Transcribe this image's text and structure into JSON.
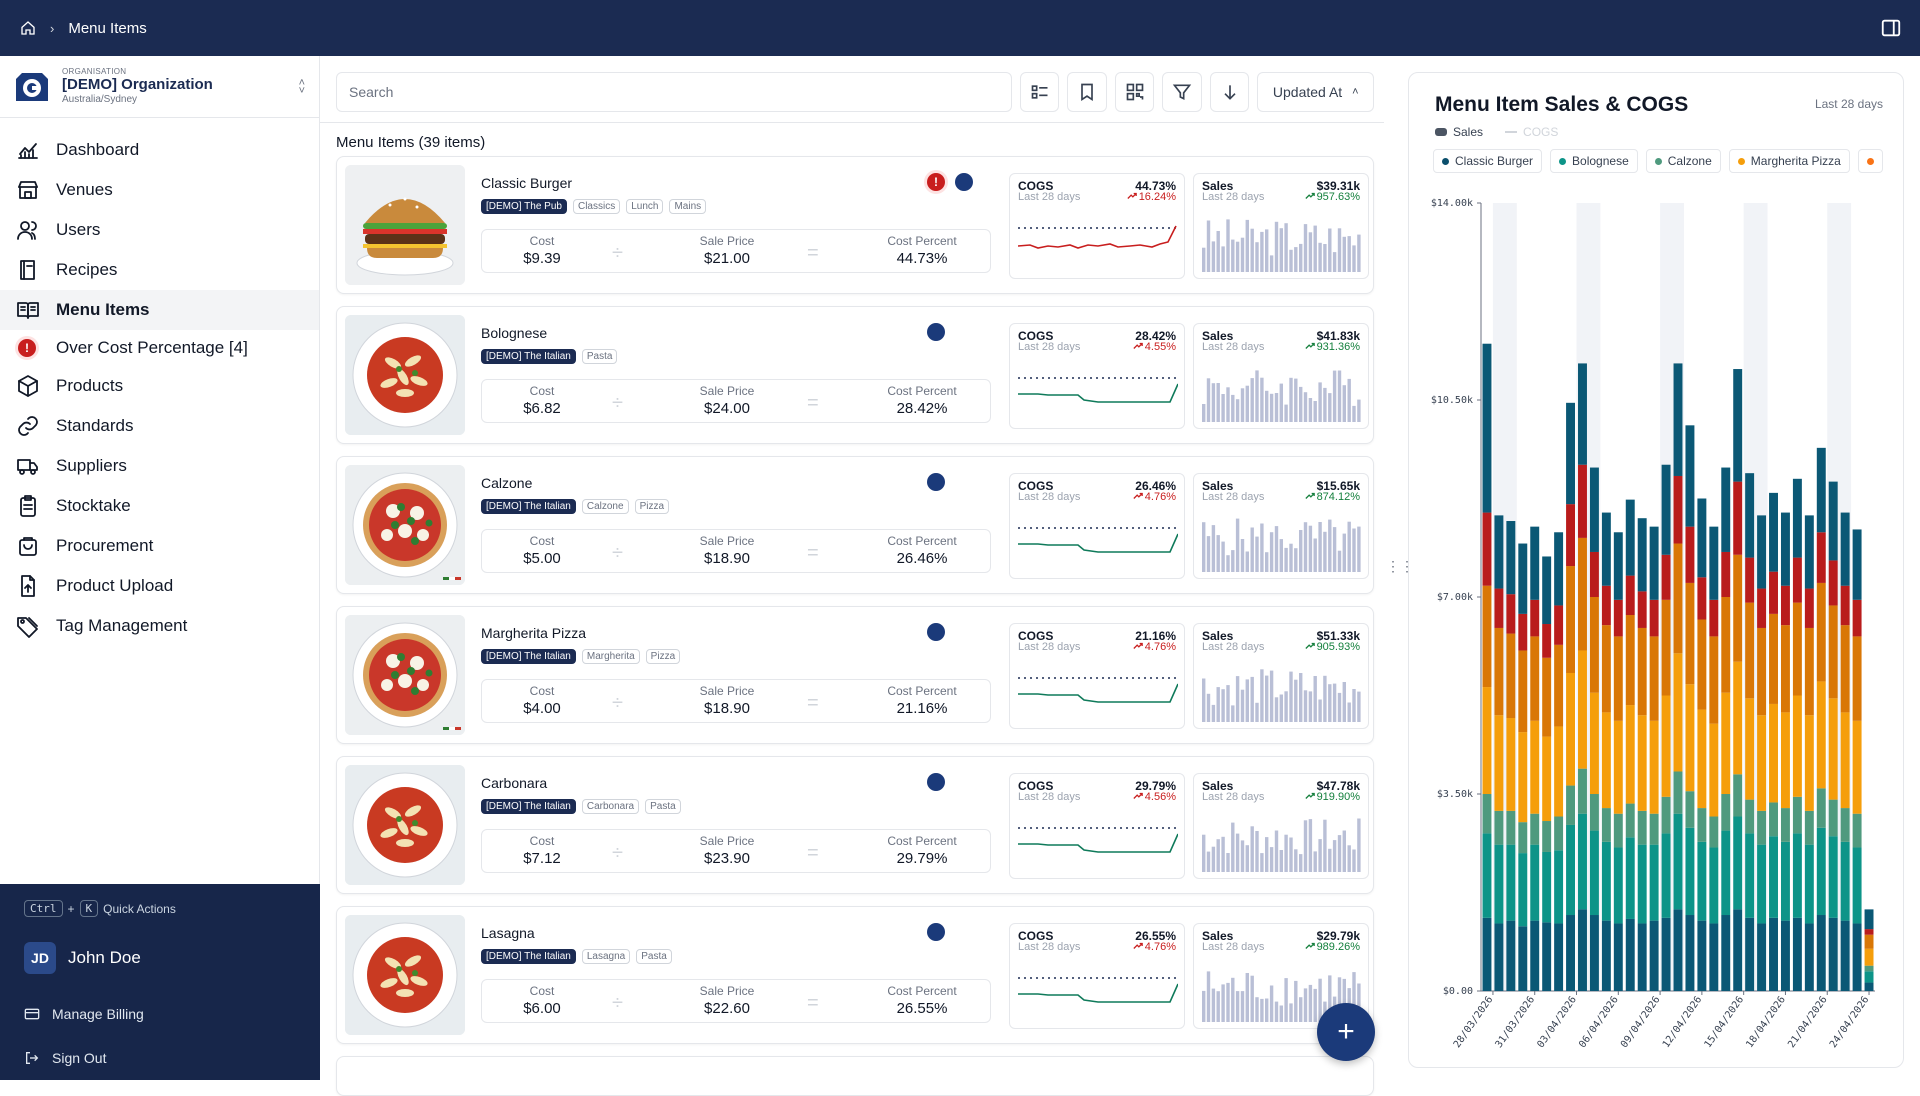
{
  "topbar": {
    "breadcrumb": "Menu Items"
  },
  "org": {
    "label": "ORGANISATION",
    "name": "[DEMO] Organization",
    "timezone": "Australia/Sydney"
  },
  "nav": [
    {
      "label": "Dashboard",
      "icon": "chart-icon"
    },
    {
      "label": "Venues",
      "icon": "store-icon"
    },
    {
      "label": "Users",
      "icon": "users-icon"
    },
    {
      "label": "Recipes",
      "icon": "book-icon"
    },
    {
      "label": "Menu Items",
      "icon": "menu-book-icon",
      "active": true
    },
    {
      "label": "Over Cost Percentage [4]",
      "icon": "alert-icon",
      "sub": true
    },
    {
      "label": "Products",
      "icon": "box-icon"
    },
    {
      "label": "Standards",
      "icon": "link-icon"
    },
    {
      "label": "Suppliers",
      "icon": "truck-icon"
    },
    {
      "label": "Stocktake",
      "icon": "clipboard-icon"
    },
    {
      "label": "Procurement",
      "icon": "cart-icon"
    },
    {
      "label": "Product Upload",
      "icon": "upload-icon"
    },
    {
      "label": "Tag Management",
      "icon": "tag-icon"
    }
  ],
  "userpanel": {
    "kbd1": "Ctrl",
    "plus": "+",
    "kbd2": "K",
    "quick_actions": "Quick Actions",
    "initials": "JD",
    "user_name": "John Doe",
    "billing": "Manage Billing",
    "signout": "Sign Out"
  },
  "toolbar": {
    "search_placeholder": "Search",
    "sort_label": "Updated At"
  },
  "list": {
    "count_label": "Menu Items (39 items)"
  },
  "labels": {
    "cost": "Cost",
    "sale_price": "Sale Price",
    "cost_percent": "Cost Percent",
    "cogs": "COGS",
    "sales": "Sales",
    "period": "Last 28 days"
  },
  "items": [
    {
      "name": "Classic Burger",
      "tags": [
        "[DEMO] The Pub",
        "Classics",
        "Lunch",
        "Mains"
      ],
      "cost": "$9.39",
      "sale_price": "$21.00",
      "cost_percent": "44.73%",
      "cogs_value": "44.73%",
      "cogs_change": "16.24%",
      "sales_value": "$39.31k",
      "sales_change": "957.63%",
      "over_cost": true,
      "image": "burger"
    },
    {
      "name": "Bolognese",
      "tags": [
        "[DEMO] The Italian",
        "Pasta"
      ],
      "cost": "$6.82",
      "sale_price": "$24.00",
      "cost_percent": "28.42%",
      "cogs_value": "28.42%",
      "cogs_change": "4.55%",
      "sales_value": "$41.83k",
      "sales_change": "931.36%",
      "over_cost": false,
      "image": "pasta"
    },
    {
      "name": "Calzone",
      "tags": [
        "[DEMO] The Italian",
        "Calzone",
        "Pizza"
      ],
      "cost": "$5.00",
      "sale_price": "$18.90",
      "cost_percent": "26.46%",
      "cogs_value": "26.46%",
      "cogs_change": "4.76%",
      "sales_value": "$15.65k",
      "sales_change": "874.12%",
      "over_cost": false,
      "image": "pizza"
    },
    {
      "name": "Margherita Pizza",
      "tags": [
        "[DEMO] The Italian",
        "Margherita",
        "Pizza"
      ],
      "cost": "$4.00",
      "sale_price": "$18.90",
      "cost_percent": "21.16%",
      "cogs_value": "21.16%",
      "cogs_change": "4.76%",
      "sales_value": "$51.33k",
      "sales_change": "905.93%",
      "over_cost": false,
      "image": "pizza"
    },
    {
      "name": "Carbonara",
      "tags": [
        "[DEMO] The Italian",
        "Carbonara",
        "Pasta"
      ],
      "cost": "$7.12",
      "sale_price": "$23.90",
      "cost_percent": "29.79%",
      "cogs_value": "29.79%",
      "cogs_change": "4.56%",
      "sales_value": "$47.78k",
      "sales_change": "919.90%",
      "over_cost": false,
      "image": "pasta"
    },
    {
      "name": "Lasagna",
      "tags": [
        "[DEMO] The Italian",
        "Lasagna",
        "Pasta"
      ],
      "cost": "$6.00",
      "sale_price": "$22.60",
      "cost_percent": "26.55%",
      "cogs_value": "26.55%",
      "cogs_change": "4.76%",
      "sales_value": "$29.79k",
      "sales_change": "989.26%",
      "over_cost": false,
      "image": "pasta"
    }
  ],
  "colors": {
    "navy": "#1b2b52",
    "accent": "#1b3a7a",
    "red": "#c81e1e",
    "green": "#15803d",
    "sales_bar": "#b9bfd6",
    "cogs_line_green": "#0f7a5a"
  },
  "chart": {
    "title": "Menu Item Sales & COGS",
    "period": "Last 28 days",
    "toggle_sales": "Sales",
    "toggle_cogs": "COGS"
  },
  "chart_data": {
    "type": "bar",
    "stacked": true,
    "title": "Menu Item Sales & COGS",
    "ylim": [
      0,
      14000
    ],
    "y_ticks": [
      "$0.00",
      "$3.50k",
      "$7.00k",
      "$10.50k",
      "$14.00k"
    ],
    "x_tick_labels": [
      "28/03/2026",
      "31/03/2026",
      "03/04/2026",
      "06/04/2026",
      "09/04/2026",
      "12/04/2026",
      "15/04/2026",
      "18/04/2026",
      "21/04/2026",
      "24/04/2026"
    ],
    "legend": [
      {
        "name": "Classic Burger",
        "color": "#0b4f6c"
      },
      {
        "name": "Bolognese",
        "color": "#0d9488"
      },
      {
        "name": "Calzone",
        "color": "#4f9a7e"
      },
      {
        "name": "Margherita Pizza",
        "color": "#f59e0b"
      }
    ],
    "series": [
      {
        "color": "#0b5875",
        "values": [
          1300,
          1200,
          1250,
          1150,
          1250,
          1220,
          1200,
          1350,
          1450,
          1350,
          1250,
          1200,
          1280,
          1200,
          1250,
          1300,
          1450,
          1350,
          1250,
          1200,
          1350,
          1450,
          1300,
          1200,
          1300,
          1250,
          1300,
          1200,
          1350,
          1300,
          1250,
          1200,
          150
        ]
      },
      {
        "color": "#0d9488",
        "values": [
          1500,
          1400,
          1350,
          1300,
          1350,
          1250,
          1300,
          1600,
          1700,
          1500,
          1400,
          1350,
          1450,
          1400,
          1350,
          1500,
          1700,
          1550,
          1400,
          1350,
          1500,
          1650,
          1500,
          1400,
          1450,
          1400,
          1500,
          1400,
          1550,
          1450,
          1400,
          1350,
          200
        ]
      },
      {
        "color": "#4f9a7e",
        "values": [
          700,
          600,
          600,
          550,
          550,
          550,
          600,
          700,
          800,
          650,
          600,
          600,
          600,
          600,
          550,
          650,
          750,
          650,
          600,
          550,
          650,
          750,
          600,
          600,
          600,
          600,
          650,
          600,
          700,
          650,
          600,
          600,
          100
        ]
      },
      {
        "color": "#f59e0b",
        "values": [
          1900,
          1700,
          1650,
          1600,
          1650,
          1500,
          1600,
          2000,
          2100,
          1800,
          1700,
          1650,
          1750,
          1700,
          1650,
          1800,
          2100,
          1900,
          1750,
          1650,
          1800,
          2000,
          1800,
          1700,
          1750,
          1700,
          1800,
          1700,
          1900,
          1800,
          1700,
          1650,
          300
        ]
      },
      {
        "color": "#d97706",
        "values": [
          1800,
          1550,
          1500,
          1450,
          1500,
          1400,
          1450,
          1900,
          2000,
          1700,
          1550,
          1500,
          1600,
          1550,
          1500,
          1700,
          1950,
          1800,
          1600,
          1550,
          1700,
          1900,
          1700,
          1550,
          1600,
          1550,
          1650,
          1550,
          1750,
          1650,
          1550,
          1500,
          250
        ]
      },
      {
        "color": "#b91c1c",
        "values": [
          1300,
          700,
          700,
          650,
          650,
          600,
          700,
          1100,
          1300,
          800,
          700,
          650,
          700,
          650,
          650,
          800,
          1200,
          1000,
          750,
          650,
          800,
          1300,
          800,
          700,
          750,
          700,
          800,
          700,
          900,
          800,
          700,
          650,
          100
        ]
      },
      {
        "color": "#0b5875",
        "values": [
          3000,
          1300,
          1300,
          1250,
          1300,
          1200,
          1300,
          1800,
          1800,
          1500,
          1300,
          1200,
          1350,
          1300,
          1300,
          1600,
          2000,
          1800,
          1400,
          1300,
          1500,
          2000,
          1500,
          1300,
          1400,
          1300,
          1400,
          1300,
          1500,
          1400,
          1300,
          1250,
          350
        ]
      }
    ]
  }
}
